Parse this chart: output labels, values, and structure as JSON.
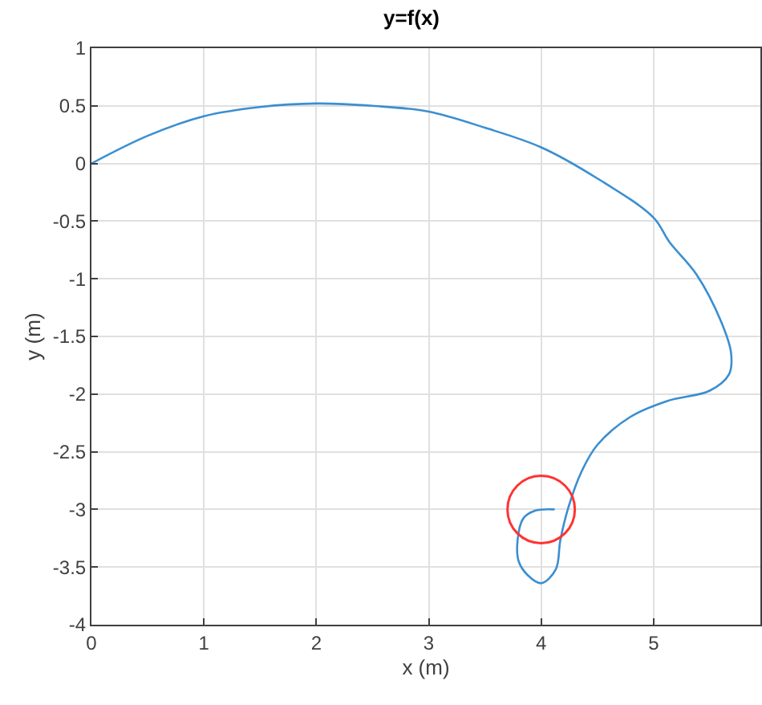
{
  "chart_data": {
    "type": "line",
    "title": "y=f(x)",
    "xlabel": "x (m)",
    "ylabel": "y (m)",
    "xlim": [
      0,
      5.95
    ],
    "xticks": [
      0,
      1,
      2,
      3,
      4,
      5
    ],
    "ylim": [
      -4,
      1
    ],
    "yticks": [
      -4,
      -3.5,
      -3,
      -2.5,
      -2,
      -1.5,
      -1,
      -0.5,
      0,
      0.5,
      1
    ],
    "grid": true,
    "series": [
      {
        "color": "#3a8fd1",
        "x": [
          0,
          0.5,
          1,
          1.5,
          2,
          2.5,
          3,
          3.5,
          4,
          4.5,
          5,
          5.14,
          5.38,
          5.6,
          5.69,
          5.67,
          5.5,
          5.12,
          4.79,
          4.5,
          4.36,
          4.24,
          4.17,
          4.13,
          4.0,
          3.88,
          3.8,
          3.79,
          3.84,
          3.95,
          4.12
        ],
        "values": [
          0,
          0.24,
          0.41,
          0.49,
          0.52,
          0.5,
          0.45,
          0.31,
          0.14,
          -0.13,
          -0.47,
          -0.68,
          -0.96,
          -1.37,
          -1.65,
          -1.83,
          -1.97,
          -2.06,
          -2.2,
          -2.44,
          -2.67,
          -2.99,
          -3.27,
          -3.52,
          -3.64,
          -3.57,
          -3.45,
          -3.27,
          -3.08,
          -3.01,
          -3.0
        ]
      },
      {
        "type": "scatter",
        "color": "#ff3333",
        "marker": "circle",
        "x": [
          4
        ],
        "values": [
          -3
        ]
      }
    ]
  }
}
